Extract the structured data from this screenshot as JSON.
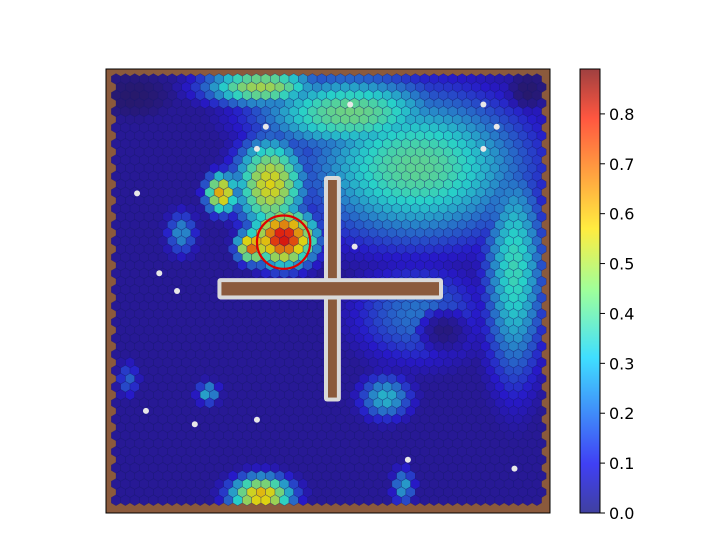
{
  "chart_data": {
    "type": "heatmap",
    "title": "",
    "xlabel": "",
    "ylabel": "",
    "grid": false,
    "legend": "none",
    "colormap": "jet",
    "colorbar": {
      "range": [
        0.0,
        0.89
      ],
      "ticks": [
        0.0,
        0.1,
        0.2,
        0.3,
        0.4,
        0.5,
        0.6,
        0.7,
        0.8
      ],
      "tick_labels": [
        "0.0",
        "0.1",
        "0.2",
        "0.3",
        "0.4",
        "0.5",
        "0.6",
        "0.7",
        "0.8"
      ]
    },
    "field": {
      "description_values_in_data_units": "normalized grid 0..1 (x right, y down); value = colormap level",
      "background_value": 0.05,
      "blobs": [
        {
          "x": 0.7,
          "y": 0.22,
          "rx": 0.3,
          "ry": 0.2,
          "value": 0.4
        },
        {
          "x": 0.92,
          "y": 0.45,
          "rx": 0.08,
          "ry": 0.3,
          "value": 0.36
        },
        {
          "x": 0.55,
          "y": 0.1,
          "rx": 0.25,
          "ry": 0.1,
          "value": 0.42
        },
        {
          "x": 0.35,
          "y": 0.04,
          "rx": 0.15,
          "ry": 0.05,
          "value": 0.48
        },
        {
          "x": 0.37,
          "y": 0.26,
          "rx": 0.09,
          "ry": 0.12,
          "value": 0.55
        },
        {
          "x": 0.4,
          "y": 0.38,
          "rx": 0.08,
          "ry": 0.07,
          "value": 0.8
        },
        {
          "x": 0.33,
          "y": 0.4,
          "rx": 0.04,
          "ry": 0.04,
          "value": 0.7
        },
        {
          "x": 0.26,
          "y": 0.28,
          "rx": 0.04,
          "ry": 0.05,
          "value": 0.62
        },
        {
          "x": 0.7,
          "y": 0.55,
          "rx": 0.18,
          "ry": 0.14,
          "value": 0.22
        },
        {
          "x": 0.63,
          "y": 0.74,
          "rx": 0.07,
          "ry": 0.06,
          "value": 0.3
        },
        {
          "x": 0.17,
          "y": 0.37,
          "rx": 0.04,
          "ry": 0.06,
          "value": 0.26
        },
        {
          "x": 0.23,
          "y": 0.73,
          "rx": 0.03,
          "ry": 0.03,
          "value": 0.3
        },
        {
          "x": 0.35,
          "y": 0.96,
          "rx": 0.08,
          "ry": 0.05,
          "value": 0.6
        },
        {
          "x": 0.67,
          "y": 0.94,
          "rx": 0.03,
          "ry": 0.05,
          "value": 0.28
        },
        {
          "x": 0.05,
          "y": 0.7,
          "rx": 0.03,
          "ry": 0.05,
          "value": 0.2
        }
      ],
      "dark_zones": [
        {
          "x": 0.76,
          "y": 0.59,
          "rx": 0.07,
          "ry": 0.06,
          "value": 0.02
        },
        {
          "x": 0.06,
          "y": 0.06,
          "rx": 0.1,
          "ry": 0.06,
          "value": 0.0
        },
        {
          "x": 0.95,
          "y": 0.05,
          "rx": 0.05,
          "ry": 0.05,
          "value": 0.0
        }
      ]
    },
    "obstacles": [
      {
        "name": "vertical-bar",
        "x": [
          0.5,
          0.52
        ],
        "y": [
          0.25,
          0.74
        ]
      },
      {
        "name": "horizontal-bar",
        "x": [
          0.26,
          0.75
        ],
        "y": [
          0.48,
          0.51
        ]
      }
    ],
    "boundary_color": "#8b5a3c",
    "marker_circle": {
      "x": 0.4,
      "y": 0.39,
      "r": 0.06,
      "color": "#e00000"
    },
    "white_dots": [
      [
        0.07,
        0.28
      ],
      [
        0.12,
        0.46
      ],
      [
        0.16,
        0.5
      ],
      [
        0.09,
        0.77
      ],
      [
        0.2,
        0.8
      ],
      [
        0.34,
        0.79
      ],
      [
        0.55,
        0.08
      ],
      [
        0.85,
        0.08
      ],
      [
        0.88,
        0.13
      ],
      [
        0.85,
        0.18
      ],
      [
        0.56,
        0.4
      ],
      [
        0.68,
        0.88
      ],
      [
        0.92,
        0.9
      ],
      [
        0.34,
        0.18
      ],
      [
        0.36,
        0.13
      ]
    ]
  }
}
